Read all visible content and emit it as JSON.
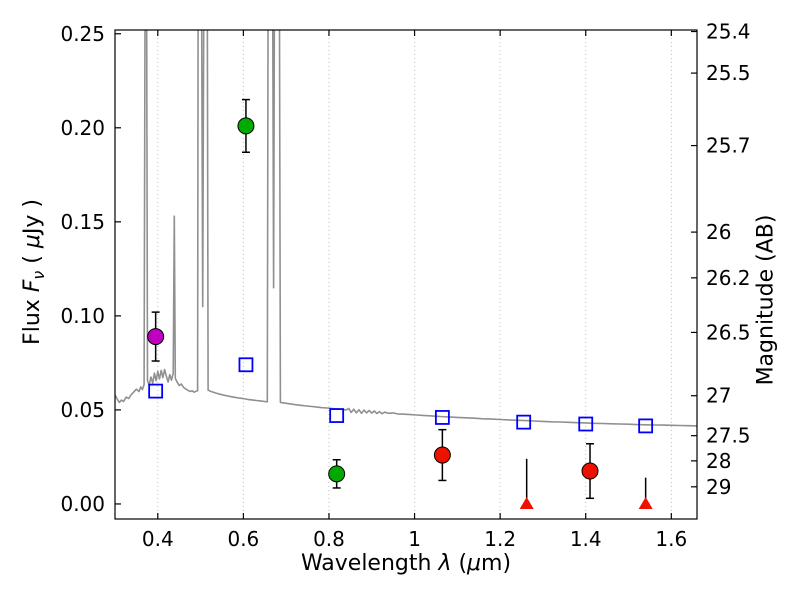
{
  "figure": {
    "background": "#ffffff"
  },
  "labels": {
    "x": [
      "Wavelength  ",
      "λ",
      " (",
      "μ",
      "m)"
    ],
    "y_left": [
      "Flux  ",
      "F",
      "ν",
      "  ( ",
      "μ",
      "Jy )"
    ],
    "y_right": "Magnitude (AB)"
  },
  "chart_data": {
    "type": "scatter",
    "title": "",
    "xlabel": "Wavelength λ (μm)",
    "ylabel": "Flux Fν ( μJy )",
    "ylabel_right": "Magnitude (AB)",
    "xlim": [
      0.3,
      1.66
    ],
    "ylim": [
      -0.008,
      0.252
    ],
    "x_ticks": [
      0.4,
      0.6,
      0.8,
      1.0,
      1.2,
      1.4,
      1.6
    ],
    "x_tick_labels": [
      "0.4",
      "0.6",
      "0.8",
      "1",
      "1.2",
      "1.4",
      "1.6"
    ],
    "y_ticks": [
      0.0,
      0.05,
      0.1,
      0.15,
      0.2,
      0.25
    ],
    "y_tick_labels": [
      "0.00",
      "0.05",
      "0.10",
      "0.15",
      "0.20",
      "0.25"
    ],
    "right_axis": {
      "tick_mags": [
        25.4,
        25.5,
        25.7,
        26,
        26.2,
        26.5,
        27,
        27.5,
        28,
        29
      ],
      "tick_labels": [
        "25.4",
        "25.5",
        "25.7",
        "26",
        "26.2",
        "26.5",
        "27",
        "27.5",
        "28",
        "29"
      ],
      "ab_zeropoint": 23.9
    },
    "grid": {
      "vertical_dotted": true,
      "horizontal": false,
      "color": "#bdbdbd"
    },
    "legend": "none",
    "series": [
      {
        "name": "model-spectrum",
        "type": "line",
        "color": "#909090",
        "points": [
          [
            0.3,
            0.058
          ],
          [
            0.305,
            0.0558
          ],
          [
            0.31,
            0.054
          ],
          [
            0.315,
            0.0552
          ],
          [
            0.32,
            0.0545
          ],
          [
            0.326,
            0.0568
          ],
          [
            0.332,
            0.056
          ],
          [
            0.338,
            0.0582
          ],
          [
            0.344,
            0.0596
          ],
          [
            0.35,
            0.061
          ],
          [
            0.356,
            0.0598
          ],
          [
            0.36,
            0.0622
          ],
          [
            0.364,
            0.0608
          ],
          [
            0.368,
            0.0635
          ],
          [
            0.3705,
            0.3
          ],
          [
            0.3735,
            0.3
          ],
          [
            0.376,
            0.0655
          ],
          [
            0.38,
            0.0632
          ],
          [
            0.384,
            0.0675
          ],
          [
            0.388,
            0.0642
          ],
          [
            0.392,
            0.0695
          ],
          [
            0.396,
            0.0655
          ],
          [
            0.4,
            0.0705
          ],
          [
            0.404,
            0.0665
          ],
          [
            0.408,
            0.071
          ],
          [
            0.412,
            0.0672
          ],
          [
            0.416,
            0.0715
          ],
          [
            0.42,
            0.0678
          ],
          [
            0.424,
            0.0648
          ],
          [
            0.428,
            0.0688
          ],
          [
            0.432,
            0.0658
          ],
          [
            0.436,
            0.0695
          ],
          [
            0.4385,
            0.153
          ],
          [
            0.441,
            0.0668
          ],
          [
            0.445,
            0.0648
          ],
          [
            0.45,
            0.063
          ],
          [
            0.455,
            0.0638
          ],
          [
            0.46,
            0.062
          ],
          [
            0.465,
            0.0612
          ],
          [
            0.47,
            0.0605
          ],
          [
            0.475,
            0.0598
          ],
          [
            0.48,
            0.0602
          ],
          [
            0.485,
            0.0594
          ],
          [
            0.49,
            0.06
          ],
          [
            0.493,
            0.0602
          ],
          [
            0.4945,
            0.3
          ],
          [
            0.502,
            0.3
          ],
          [
            0.505,
            0.105
          ],
          [
            0.508,
            0.3
          ],
          [
            0.5155,
            0.3
          ],
          [
            0.5175,
            0.0606
          ],
          [
            0.522,
            0.06
          ],
          [
            0.53,
            0.0594
          ],
          [
            0.538,
            0.0588
          ],
          [
            0.546,
            0.0583
          ],
          [
            0.554,
            0.0579
          ],
          [
            0.562,
            0.0575
          ],
          [
            0.57,
            0.0571
          ],
          [
            0.58,
            0.0567
          ],
          [
            0.59,
            0.0563
          ],
          [
            0.6,
            0.056
          ],
          [
            0.61,
            0.0556
          ],
          [
            0.62,
            0.0553
          ],
          [
            0.63,
            0.055
          ],
          [
            0.64,
            0.0548
          ],
          [
            0.65,
            0.0545
          ],
          [
            0.656,
            0.0543
          ],
          [
            0.658,
            0.3
          ],
          [
            0.668,
            0.3
          ],
          [
            0.6705,
            0.115
          ],
          [
            0.673,
            0.3
          ],
          [
            0.684,
            0.3
          ],
          [
            0.6865,
            0.054
          ],
          [
            0.692,
            0.0538
          ],
          [
            0.7,
            0.0535
          ],
          [
            0.712,
            0.0531
          ],
          [
            0.724,
            0.0527
          ],
          [
            0.736,
            0.0524
          ],
          [
            0.748,
            0.0521
          ],
          [
            0.76,
            0.0518
          ],
          [
            0.772,
            0.0515
          ],
          [
            0.784,
            0.0512
          ],
          [
            0.796,
            0.051
          ],
          [
            0.808,
            0.0507
          ],
          [
            0.82,
            0.0505
          ],
          [
            0.832,
            0.0502
          ],
          [
            0.84,
            0.05
          ],
          [
            0.846,
            0.0508
          ],
          [
            0.852,
            0.0487
          ],
          [
            0.858,
            0.0504
          ],
          [
            0.864,
            0.0484
          ],
          [
            0.87,
            0.0501
          ],
          [
            0.876,
            0.0482
          ],
          [
            0.882,
            0.0499
          ],
          [
            0.888,
            0.0484
          ],
          [
            0.894,
            0.0497
          ],
          [
            0.9,
            0.0483
          ],
          [
            0.906,
            0.0494
          ],
          [
            0.912,
            0.0481
          ],
          [
            0.918,
            0.0491
          ],
          [
            0.924,
            0.048
          ],
          [
            0.93,
            0.0488
          ],
          [
            0.94,
            0.0482
          ],
          [
            0.95,
            0.0484
          ],
          [
            0.96,
            0.0479
          ],
          [
            0.975,
            0.0477
          ],
          [
            0.99,
            0.0475
          ],
          [
            1.005,
            0.0473
          ],
          [
            1.02,
            0.0471
          ],
          [
            1.04,
            0.0468
          ],
          [
            1.06,
            0.0465
          ],
          [
            1.08,
            0.0463
          ],
          [
            1.1,
            0.046
          ],
          [
            1.12,
            0.0458
          ],
          [
            1.14,
            0.0456
          ],
          [
            1.16,
            0.0453
          ],
          [
            1.18,
            0.0451
          ],
          [
            1.2,
            0.0449
          ],
          [
            1.22,
            0.0447
          ],
          [
            1.24,
            0.0445
          ],
          [
            1.26,
            0.0443
          ],
          [
            1.28,
            0.0441
          ],
          [
            1.3,
            0.0439
          ],
          [
            1.32,
            0.0437
          ],
          [
            1.34,
            0.0436
          ],
          [
            1.36,
            0.0434
          ],
          [
            1.38,
            0.0432
          ],
          [
            1.4,
            0.0431
          ],
          [
            1.42,
            0.0429
          ],
          [
            1.44,
            0.0428
          ],
          [
            1.46,
            0.0426
          ],
          [
            1.48,
            0.0425
          ],
          [
            1.5,
            0.0424
          ],
          [
            1.52,
            0.0422
          ],
          [
            1.54,
            0.0421
          ],
          [
            1.56,
            0.042
          ],
          [
            1.58,
            0.0419
          ],
          [
            1.6,
            0.0418
          ],
          [
            1.62,
            0.0417
          ],
          [
            1.64,
            0.0416
          ],
          [
            1.66,
            0.0415
          ]
        ]
      },
      {
        "name": "magenta-circles",
        "type": "scatter",
        "marker": "circle",
        "color": "#bf00bf",
        "edge": "#000000",
        "points": [
          {
            "x": 0.395,
            "y": 0.089,
            "yerr": 0.013
          }
        ]
      },
      {
        "name": "green-circles",
        "type": "scatter",
        "marker": "circle",
        "color": "#00aa00",
        "edge": "#000000",
        "points": [
          {
            "x": 0.606,
            "y": 0.201,
            "yerr": 0.014
          },
          {
            "x": 0.818,
            "y": 0.016,
            "yerr": 0.0075
          }
        ]
      },
      {
        "name": "blue-open-squares",
        "type": "scatter",
        "marker": "square-open",
        "color": "#0000ff",
        "points": [
          {
            "x": 0.395,
            "y": 0.06
          },
          {
            "x": 0.606,
            "y": 0.074
          },
          {
            "x": 0.818,
            "y": 0.047
          },
          {
            "x": 1.065,
            "y": 0.046
          },
          {
            "x": 1.255,
            "y": 0.0435
          },
          {
            "x": 1.4,
            "y": 0.0425
          },
          {
            "x": 1.54,
            "y": 0.0415
          }
        ]
      },
      {
        "name": "red-circles",
        "type": "scatter",
        "marker": "circle",
        "color": "#ee1100",
        "edge": "#000000",
        "points": [
          {
            "x": 1.065,
            "y": 0.026,
            "yerr": 0.0135
          },
          {
            "x": 1.41,
            "y": 0.0175,
            "yerr": 0.0145
          }
        ]
      },
      {
        "name": "red-upper-limits",
        "type": "scatter",
        "marker": "triangle-up",
        "color": "#ee1100",
        "points": [
          {
            "x": 1.262,
            "y": 0.0,
            "upper": 0.024
          },
          {
            "x": 1.54,
            "y": 0.0,
            "upper": 0.014
          }
        ]
      }
    ]
  }
}
